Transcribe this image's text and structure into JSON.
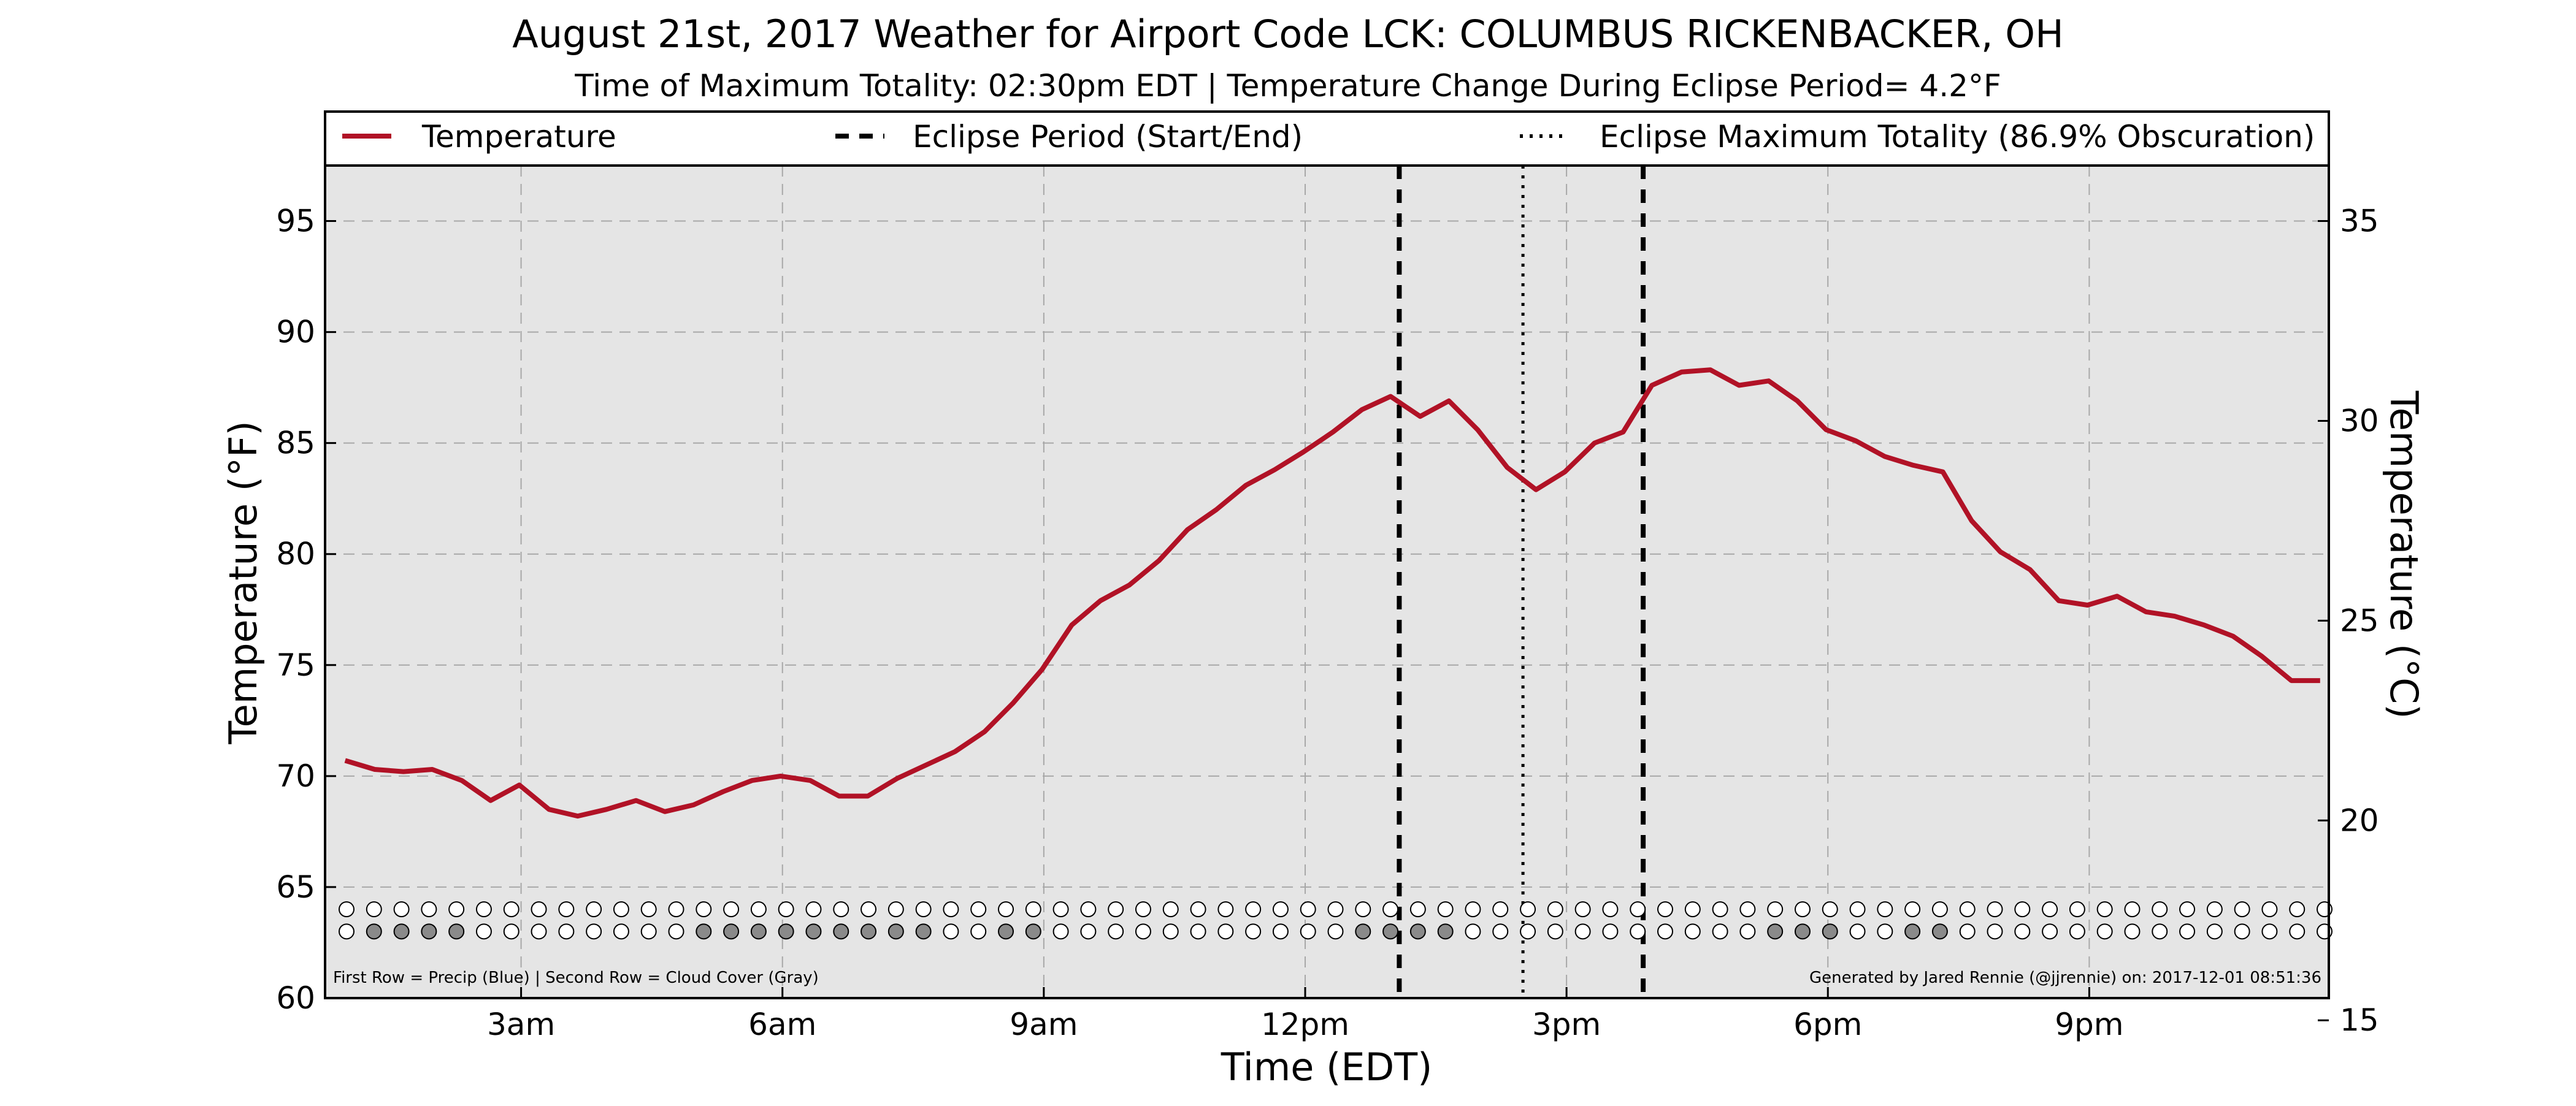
{
  "chart_data": {
    "type": "line",
    "title": "August 21st, 2017 Weather for Airport Code LCK: COLUMBUS RICKENBACKER, OH",
    "subtitle": "Time of Maximum Totality: 02:30pm EDT | Temperature Change During Eclipse Period= 4.2°F",
    "xlabel": "Time (EDT)",
    "ylabel": "Temperature (°F)",
    "ylabel_right": "Temperature (°C)",
    "x_unit": "hour of day (EDT)",
    "xlim": [
      0.75,
      23.75
    ],
    "ylim": [
      60,
      97.5
    ],
    "ylim_right_c": [
      15.56,
      36.39
    ],
    "x_tick_values": [
      3,
      6,
      9,
      12,
      15,
      18,
      21
    ],
    "x_tick_labels": [
      "3am",
      "6am",
      "9am",
      "12pm",
      "3pm",
      "6pm",
      "9pm"
    ],
    "y_ticks": [
      60,
      65,
      70,
      75,
      80,
      85,
      90,
      95
    ],
    "y_right_ticks": [
      15,
      20,
      25,
      30,
      35
    ],
    "grid": true,
    "legend_position": "top",
    "series": [
      {
        "name": "Temperature",
        "color": "#b11226",
        "x": [
          0.98,
          1.32,
          1.65,
          1.98,
          2.32,
          2.65,
          2.98,
          3.32,
          3.65,
          3.98,
          4.32,
          4.65,
          4.98,
          5.32,
          5.65,
          5.98,
          6.32,
          6.65,
          6.98,
          7.32,
          7.65,
          7.98,
          8.32,
          8.65,
          8.98,
          9.32,
          9.65,
          9.98,
          10.32,
          10.65,
          10.98,
          11.32,
          11.65,
          11.98,
          12.32,
          12.65,
          12.98,
          13.32,
          13.65,
          13.98,
          14.32,
          14.65,
          14.98,
          15.32,
          15.65,
          15.98,
          16.32,
          16.65,
          16.98,
          17.32,
          17.65,
          17.98,
          18.32,
          18.65,
          18.98,
          19.32,
          19.65,
          19.98,
          20.32,
          20.65,
          20.98,
          21.32,
          21.65,
          21.98,
          22.32,
          22.65,
          22.98,
          23.32,
          23.65
        ],
        "values": [
          70.7,
          70.3,
          70.2,
          70.3,
          69.8,
          68.9,
          69.6,
          68.5,
          68.2,
          68.5,
          68.9,
          68.4,
          68.7,
          69.3,
          69.8,
          70.0,
          69.8,
          69.1,
          69.1,
          69.9,
          70.5,
          71.1,
          72.0,
          73.3,
          74.8,
          76.8,
          77.9,
          78.6,
          79.7,
          81.1,
          82.0,
          83.1,
          83.8,
          84.6,
          85.5,
          86.5,
          87.1,
          86.2,
          86.9,
          85.6,
          83.9,
          82.9,
          83.7,
          85.0,
          85.5,
          87.6,
          88.2,
          88.3,
          87.6,
          87.8,
          86.9,
          85.6,
          85.1,
          84.4,
          84.0,
          83.7,
          81.5,
          80.1,
          79.3,
          77.9,
          77.7,
          78.1,
          77.4,
          77.2,
          76.8,
          76.3,
          75.4,
          74.3,
          74.3
        ]
      }
    ],
    "eclipse_period": {
      "name": "Eclipse Period (Start/End)",
      "start": 13.08,
      "end": 15.88,
      "color": "#000000"
    },
    "eclipse_max": {
      "name": "Eclipse Maximum Totality (86.9% Obscuration)",
      "x": 14.5,
      "color": "#000000"
    },
    "indicator_rows": {
      "first_row_label": "Precip",
      "second_row_label": "Cloud Cover",
      "precip_color": "#3a6fd8",
      "cloud_color": "#8a8a8a",
      "empty_color": "#ffffff",
      "precip": [
        0,
        0,
        0,
        0,
        0,
        0,
        0,
        0,
        0,
        0,
        0,
        0,
        0,
        0,
        0,
        0,
        0,
        0,
        0,
        0,
        0,
        0,
        0,
        0,
        0,
        0,
        0,
        0,
        0,
        0,
        0,
        0,
        0,
        0,
        0,
        0,
        0,
        0,
        0,
        0,
        0,
        0,
        0,
        0,
        0,
        0,
        0,
        0,
        0,
        0,
        0,
        0,
        0,
        0,
        0,
        0,
        0,
        0,
        0,
        0,
        0,
        0,
        0,
        0,
        0,
        0,
        0,
        0,
        0,
        0,
        0,
        0,
        0
      ],
      "cloud": [
        0,
        1,
        1,
        1,
        1,
        0,
        0,
        0,
        0,
        0,
        0,
        0,
        0,
        1,
        1,
        1,
        1,
        1,
        1,
        1,
        1,
        1,
        0,
        0,
        1,
        1,
        0,
        0,
        0,
        0,
        0,
        0,
        0,
        0,
        0,
        0,
        0,
        1,
        1,
        1,
        1,
        0,
        0,
        0,
        0,
        0,
        0,
        0,
        0,
        0,
        0,
        0,
        1,
        1,
        1,
        0,
        0,
        1,
        1,
        0,
        0,
        0,
        0,
        0,
        0,
        0,
        0,
        0,
        0,
        0,
        0,
        0,
        0
      ]
    },
    "footnote_left": "First Row = Precip (Blue) | Second Row = Cloud Cover (Gray)",
    "footnote_right": "Generated by Jared Rennie (@jjrennie) on: 2017-12-01 08:51:36"
  }
}
